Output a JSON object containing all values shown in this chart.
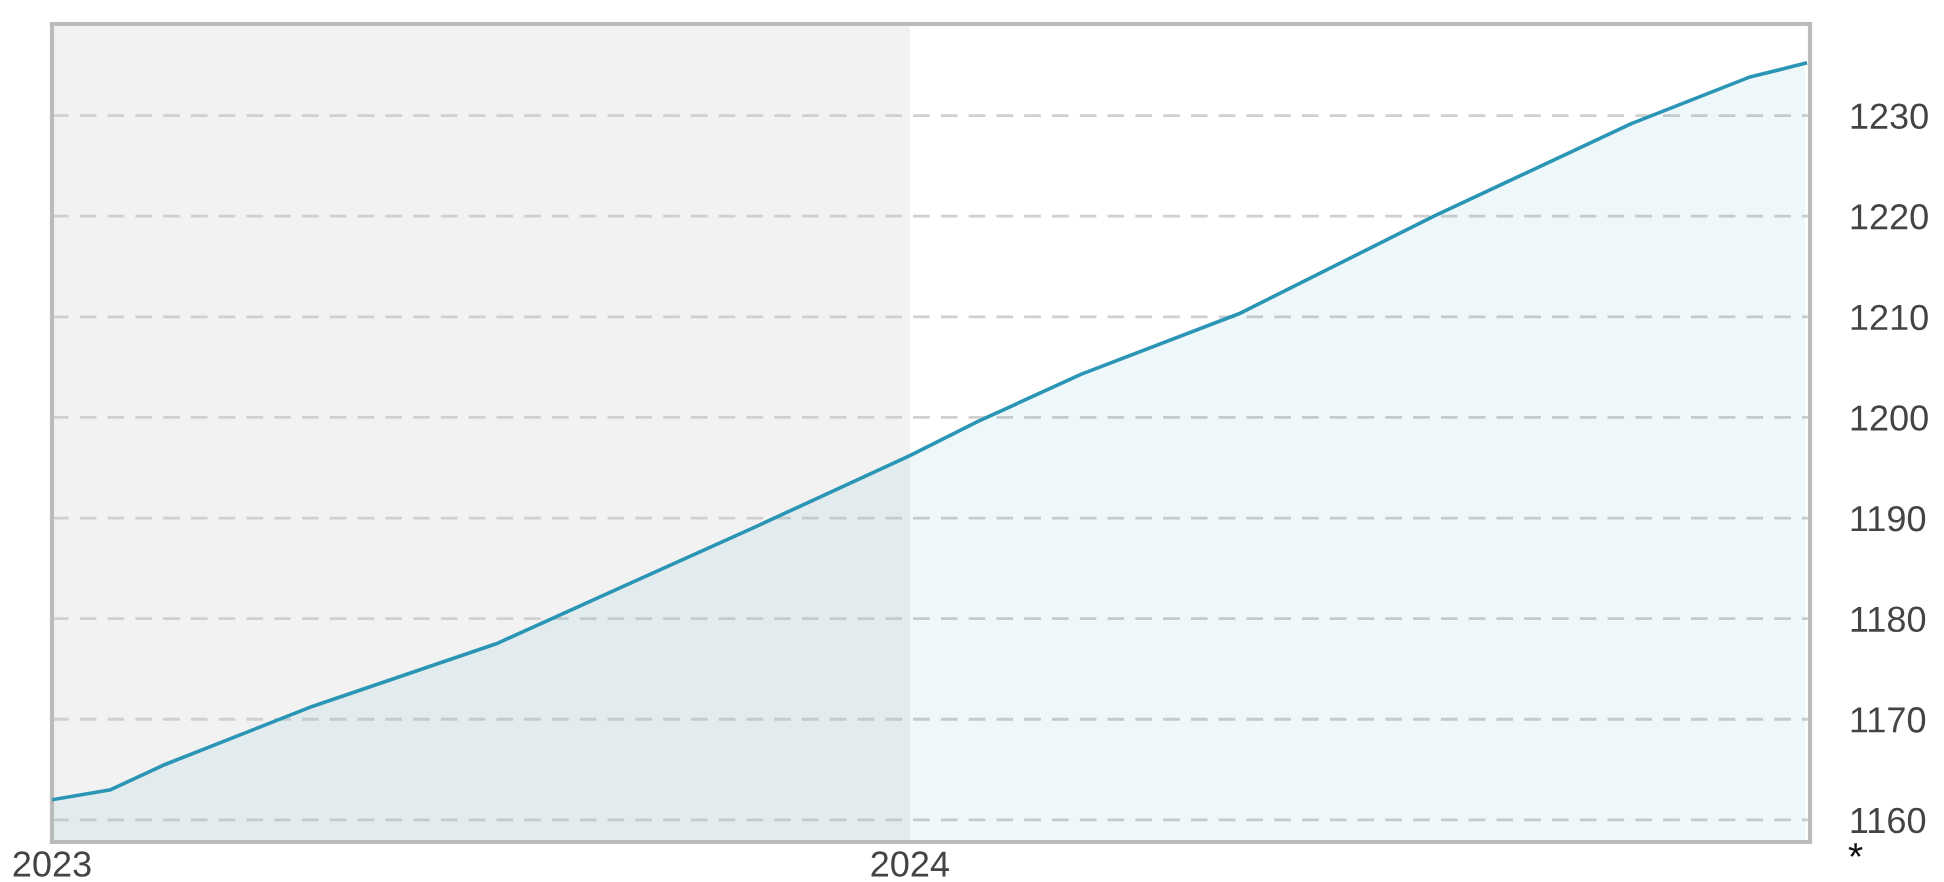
{
  "chart_data": {
    "type": "area",
    "x": [
      "2023-01-01",
      "2023-01-26",
      "2023-02-17",
      "2023-04-22",
      "2023-07-09",
      "2023-09-02",
      "2023-10-28",
      "2024-01-01",
      "2024-01-30",
      "2024-03-14",
      "2024-05-20",
      "2024-08-11",
      "2024-11-03",
      "2024-12-23",
      "2025-01-16"
    ],
    "series": [
      {
        "color": "#2a95b5",
        "values": [
          1162.0,
          1163.0,
          1165.4,
          1171.3,
          1177.5,
          1183.3,
          1189.2,
          1196.2,
          1199.6,
          1204.3,
          1210.3,
          1220.0,
          1229.2,
          1233.8,
          1235.2
        ]
      }
    ],
    "xlim": [
      "2023-01-01",
      "2025-01-18"
    ],
    "xticks": [
      {
        "value": "2023-01-01",
        "label": "2023"
      },
      {
        "value": "2024-01-01",
        "label": "2024"
      }
    ],
    "ylim": [
      1157.8,
      1239.1
    ],
    "yticks": [
      1160,
      1170,
      1180,
      1190,
      1200,
      1210,
      1220,
      1230
    ],
    "grid": "y",
    "bands": [
      {
        "axis": "x",
        "from": "2023-01-01",
        "to": "2024-01-01",
        "color": "#f2f2f2"
      }
    ],
    "annotations": [
      "*"
    ]
  }
}
